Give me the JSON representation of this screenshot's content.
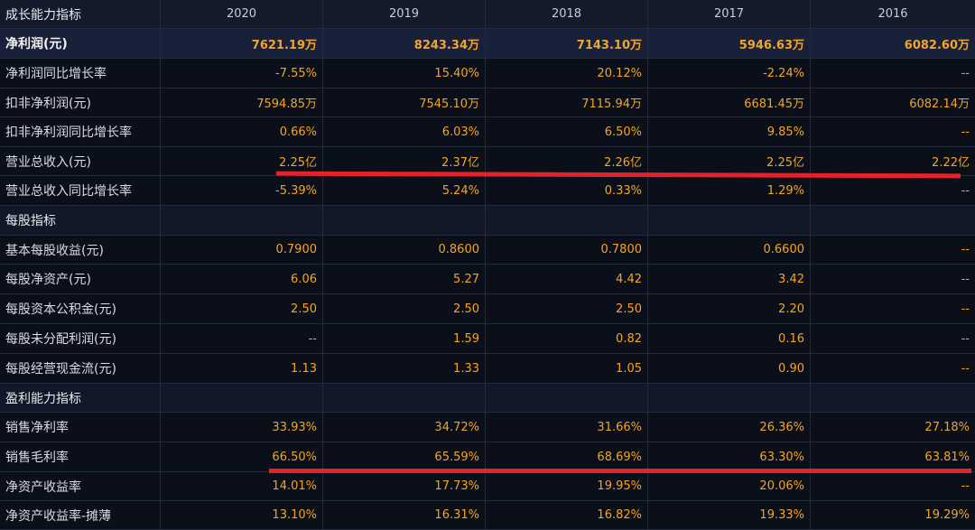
{
  "header": {
    "title": "成长能力指标",
    "years": [
      "2020",
      "2019",
      "2018",
      "2017",
      "2016"
    ]
  },
  "rows": [
    {
      "label": "净利润(元)",
      "values": [
        "7621.19万",
        "8243.34万",
        "7143.10万",
        "5946.63万",
        "6082.60万"
      ]
    },
    {
      "label": "净利润同比增长率",
      "values": [
        "-7.55%",
        "15.40%",
        "20.12%",
        "-2.24%",
        "--"
      ]
    },
    {
      "label": "扣非净利润(元)",
      "values": [
        "7594.85万",
        "7545.10万",
        "7115.94万",
        "6681.45万",
        "6082.14万"
      ]
    },
    {
      "label": "扣非净利润同比增长率",
      "values": [
        "0.66%",
        "6.03%",
        "6.50%",
        "9.85%",
        "--"
      ]
    },
    {
      "label": "营业总收入(元)",
      "values": [
        "2.25亿",
        "2.37亿",
        "2.26亿",
        "2.25亿",
        "2.22亿"
      ]
    },
    {
      "label": "营业总收入同比增长率",
      "values": [
        "-5.39%",
        "5.24%",
        "0.33%",
        "1.29%",
        "--"
      ]
    },
    {
      "label": "每股指标",
      "values": [
        "",
        "",
        "",
        "",
        ""
      ]
    },
    {
      "label": "基本每股收益(元)",
      "values": [
        "0.7900",
        "0.8600",
        "0.7800",
        "0.6600",
        "--"
      ]
    },
    {
      "label": "每股净资产(元)",
      "values": [
        "6.06",
        "5.27",
        "4.42",
        "3.42",
        "--"
      ]
    },
    {
      "label": "每股资本公积金(元)",
      "values": [
        "2.50",
        "2.50",
        "2.50",
        "2.20",
        "--"
      ]
    },
    {
      "label": "每股未分配利润(元)",
      "values": [
        "--",
        "1.59",
        "0.82",
        "0.16",
        "--"
      ]
    },
    {
      "label": "每股经营现金流(元)",
      "values": [
        "1.13",
        "1.33",
        "1.05",
        "0.90",
        "--"
      ]
    },
    {
      "label": "盈利能力指标",
      "values": [
        "",
        "",
        "",
        "",
        ""
      ]
    },
    {
      "label": "销售净利率",
      "values": [
        "33.93%",
        "34.72%",
        "31.66%",
        "26.36%",
        "27.18%"
      ]
    },
    {
      "label": "销售毛利率",
      "values": [
        "66.50%",
        "65.59%",
        "68.69%",
        "63.30%",
        "63.81%"
      ]
    },
    {
      "label": "净资产收益率",
      "values": [
        "14.01%",
        "17.73%",
        "19.95%",
        "20.06%",
        "--"
      ]
    },
    {
      "label": "净资产收益率-摊薄",
      "values": [
        "13.10%",
        "16.31%",
        "16.82%",
        "19.33%",
        "19.29%"
      ]
    }
  ],
  "colors": {
    "value": "#f2a528",
    "annotation_line": "#e3222b"
  }
}
